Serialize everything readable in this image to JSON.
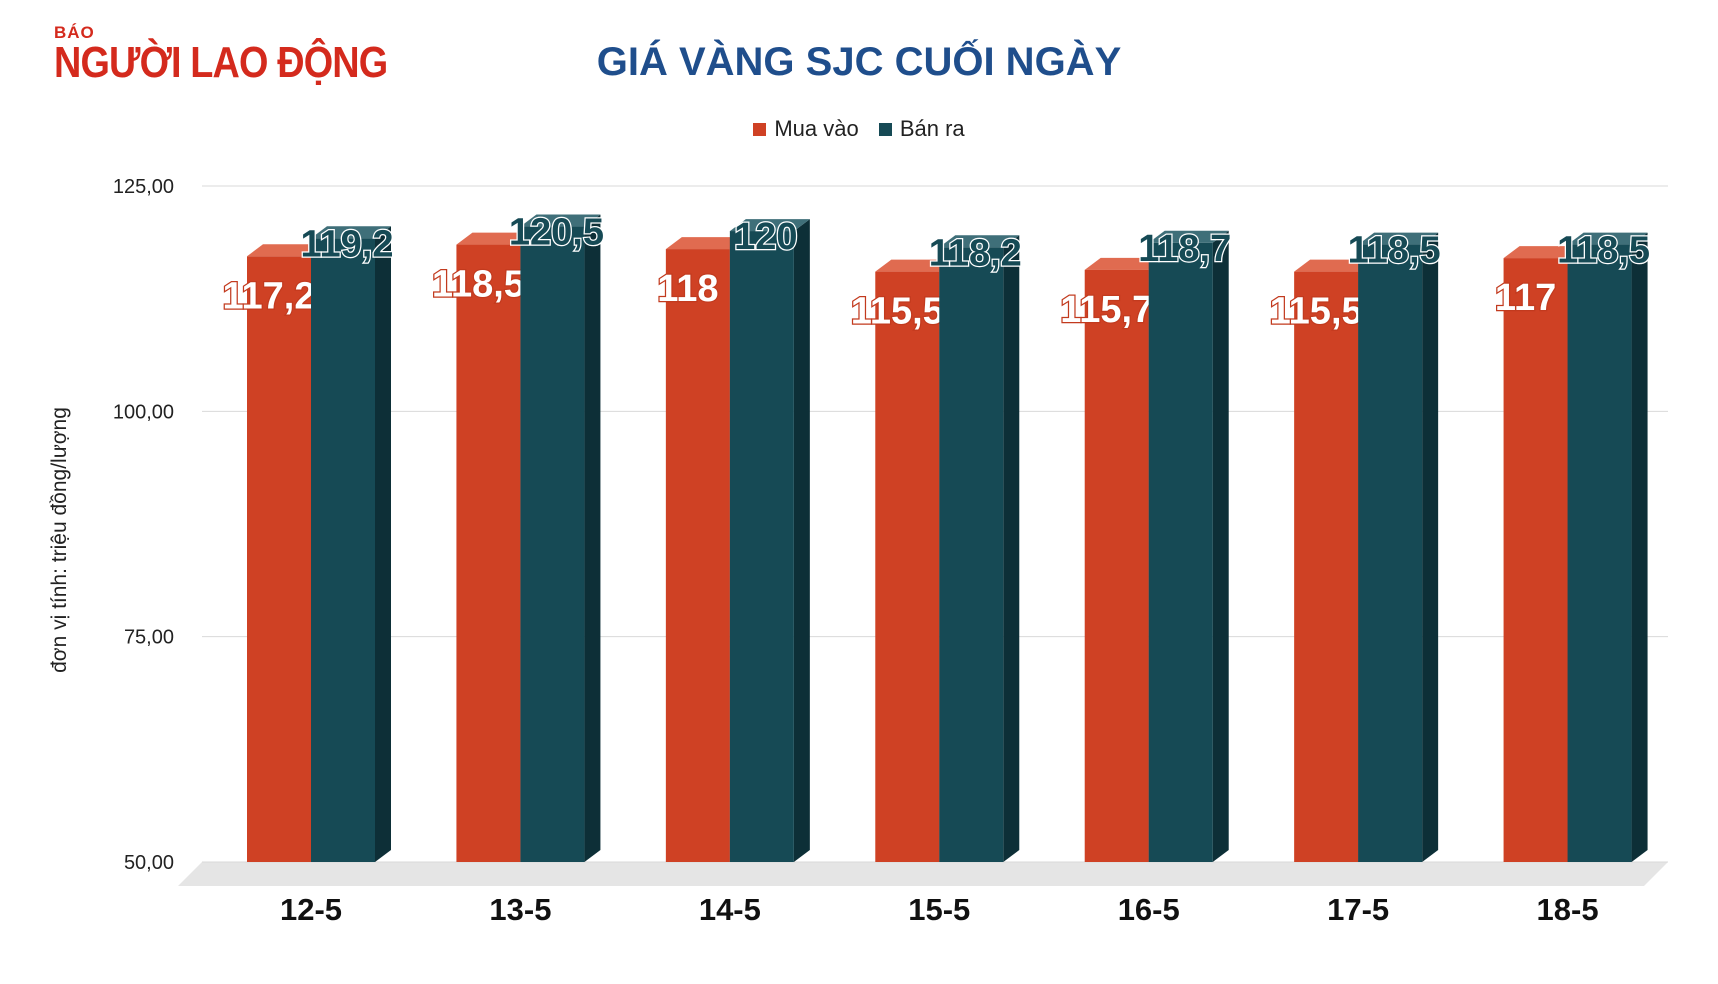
{
  "logo": {
    "small": "BÁO",
    "main": "NGƯỜI LAO ĐỘNG"
  },
  "colors": {
    "buy": "#cf4124",
    "buy_top": "#e06b50",
    "buy_side": "#a8321b",
    "sell": "#164a55",
    "sell_top": "#3f6f79",
    "sell_side": "#0d2f37",
    "title": "#1f4e8c",
    "floor": "#e5e5e5",
    "grid": "#d9d9d9"
  },
  "chart_data": {
    "type": "bar",
    "title": "GIÁ VÀNG SJC CUỐI NGÀY",
    "ylabel": "đơn vị tính: triệu đồng/lượng",
    "xlabel": "",
    "ylim": [
      50,
      125
    ],
    "yticks": [
      125,
      100,
      75,
      50
    ],
    "ytick_labels": [
      "125,00",
      "100,00",
      "75,00",
      "50,00"
    ],
    "categories": [
      "12-5",
      "13-5",
      "14-5",
      "15-5",
      "16-5",
      "17-5",
      "18-5"
    ],
    "legend_position": "top-center",
    "series": [
      {
        "name": "Mua vào",
        "values": [
          117.2,
          118.5,
          118,
          115.5,
          115.7,
          115.5,
          117
        ],
        "labels": [
          "117,2",
          "118,5",
          "118",
          "115,5",
          "115,7",
          "115,5",
          "117"
        ]
      },
      {
        "name": "Bán ra",
        "values": [
          119.2,
          120.5,
          120,
          118.2,
          118.7,
          118.5,
          118.5
        ],
        "labels": [
          "119,2",
          "120,5",
          "120",
          "118,2",
          "118,7",
          "118,5",
          "118,5"
        ]
      }
    ]
  }
}
